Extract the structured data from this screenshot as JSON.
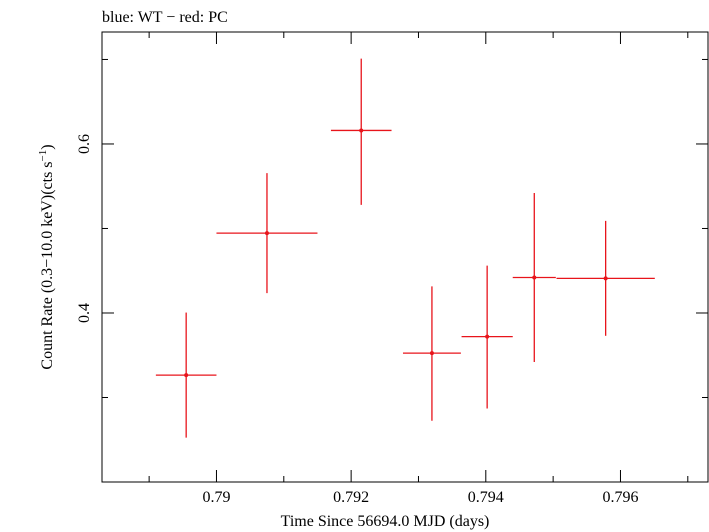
{
  "chart_data": {
    "type": "scatter",
    "title": "blue: WT − red: PC",
    "xlabel": "Time Since 56694.0 MJD (days)",
    "ylabel_main": "Count Rate (0.3−10.0 keV)(cts s",
    "ylabel_sup": "−1",
    "ylabel_close": ")",
    "xlim": [
      0.7883,
      0.7973
    ],
    "ylim": [
      0.2,
      0.7325
    ],
    "x_major_ticks": [
      0.79,
      0.792,
      0.794,
      0.796
    ],
    "x_tick_labels": [
      "0.79",
      "0.792",
      "0.794",
      "0.796"
    ],
    "x_minor_ticks": [
      0.789,
      0.791,
      0.793,
      0.795,
      0.797
    ],
    "y_major_ticks": [
      0.4,
      0.6
    ],
    "y_tick_labels": [
      "0.4",
      "0.6"
    ],
    "y_minor_ticks": [
      0.3,
      0.5,
      0.7
    ],
    "grid": false,
    "series": [
      {
        "color": "#e8141b",
        "points": [
          {
            "x": 0.78955,
            "y": 0.3265,
            "xerr_low": 0.00045,
            "xerr_high": 0.00045,
            "yerr_low": 0.074,
            "yerr_high": 0.074
          },
          {
            "x": 0.79075,
            "y": 0.4945,
            "xerr_low": 0.00075,
            "xerr_high": 0.00075,
            "yerr_low": 0.071,
            "yerr_high": 0.071
          },
          {
            "x": 0.79215,
            "y": 0.616,
            "xerr_low": 0.00045,
            "xerr_high": 0.00045,
            "yerr_low": 0.088,
            "yerr_high": 0.085
          },
          {
            "x": 0.7932,
            "y": 0.3525,
            "xerr_low": 0.00043,
            "xerr_high": 0.00043,
            "yerr_low": 0.08,
            "yerr_high": 0.079
          },
          {
            "x": 0.79402,
            "y": 0.372,
            "xerr_low": 0.00038,
            "xerr_high": 0.00038,
            "yerr_low": 0.085,
            "yerr_high": 0.084
          },
          {
            "x": 0.79472,
            "y": 0.442,
            "xerr_low": 0.00032,
            "xerr_high": 0.00032,
            "yerr_low": 0.1,
            "yerr_high": 0.1
          },
          {
            "x": 0.79578,
            "y": 0.441,
            "xerr_low": 0.00073,
            "xerr_high": 0.00073,
            "yerr_low": 0.068,
            "yerr_high": 0.068
          }
        ]
      }
    ]
  }
}
